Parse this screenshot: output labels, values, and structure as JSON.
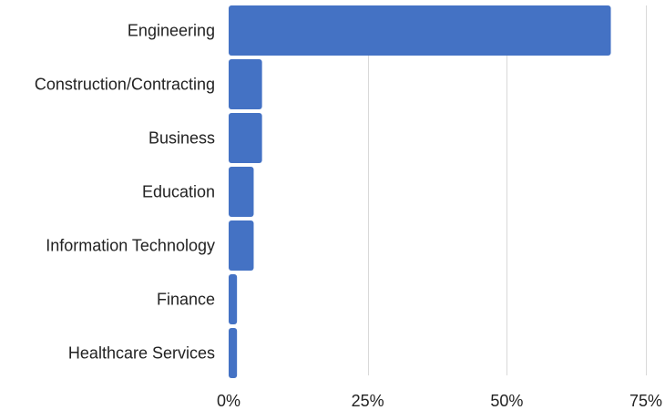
{
  "chart_data": {
    "type": "bar",
    "orientation": "horizontal",
    "title": "",
    "xlabel": "",
    "ylabel": "",
    "categories": [
      "Engineering",
      "Construction/Contracting",
      "Business",
      "Education",
      "Information Technology",
      "Finance",
      "Healthcare Services"
    ],
    "values": [
      68.7,
      6.0,
      6.0,
      4.5,
      4.5,
      1.5,
      1.5
    ],
    "xlim": [
      0,
      75
    ],
    "x_ticks": [
      0,
      25,
      50,
      75
    ],
    "x_tick_labels": [
      "0%",
      "25%",
      "50%",
      "75%"
    ],
    "grid": "vertical",
    "legend": "none",
    "bar_color": "#4472c4"
  }
}
